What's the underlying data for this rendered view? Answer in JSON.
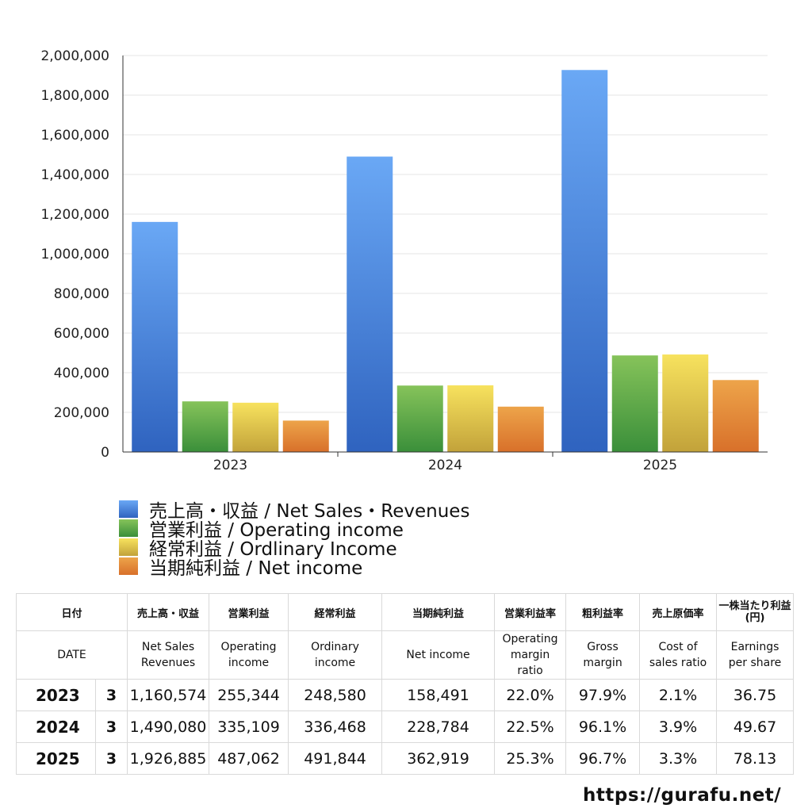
{
  "chart_data": {
    "type": "bar",
    "categories": [
      "2023",
      "2024",
      "2025"
    ],
    "ylim": [
      0,
      2000000
    ],
    "yticks": [
      "0",
      "200,000",
      "400,000",
      "600,000",
      "800,000",
      "1,000,000",
      "1,200,000",
      "1,400,000",
      "1,600,000",
      "1,800,000",
      "2,000,000"
    ],
    "grid": true,
    "legend_position": "bottom-left",
    "series": [
      {
        "name": "売上高・収益 / Net Sales・Revenues",
        "values": [
          1160574,
          1490080,
          1926885
        ],
        "color_top": "#6aa8f5",
        "color_bottom": "#2f63bf"
      },
      {
        "name": "営業利益 / Operating income",
        "values": [
          255344,
          335109,
          487062
        ],
        "color_top": "#86c35a",
        "color_bottom": "#3a8f3a"
      },
      {
        "name": "経常利益 / Ordlinary Income",
        "values": [
          248580,
          336468,
          491844
        ],
        "color_top": "#f7e25e",
        "color_bottom": "#c2a23a"
      },
      {
        "name": "当期純利益 / Net income",
        "values": [
          158491,
          228784,
          362919
        ],
        "color_top": "#eda44a",
        "color_bottom": "#d8702a"
      }
    ]
  },
  "table": {
    "header_jp": {
      "date": "日付",
      "sales": "売上高・収益",
      "operating": "営業利益",
      "ordinary": "経常利益",
      "net": "当期純利益",
      "op_margin": "営業利益率",
      "gross_margin": "粗利益率",
      "cost_ratio": "売上原価率",
      "eps_line1": "一株当たり利益",
      "eps_line2": "(円)"
    },
    "header_en": {
      "date": "DATE",
      "sales_1": "Net Sales",
      "sales_2": "Revenues",
      "operating_1": "Operating",
      "operating_2": "income",
      "ordinary_1": "Ordinary",
      "ordinary_2": "income",
      "net": "Net income",
      "op_margin_1": "Operating",
      "op_margin_2": "margin",
      "op_margin_3": "ratio",
      "gross_1": "Gross",
      "gross_2": "margin",
      "cost_1": "Cost of",
      "cost_2": "sales ratio",
      "eps_1": "Earnings",
      "eps_2": "per share"
    },
    "rows": [
      {
        "year": "2023",
        "month": "3",
        "sales": "1,160,574",
        "operating": "255,344",
        "ordinary": "248,580",
        "net": "158,491",
        "op_margin": "22.0%",
        "gross": "97.9%",
        "cost": "2.1%",
        "eps": "36.75"
      },
      {
        "year": "2024",
        "month": "3",
        "sales": "1,490,080",
        "operating": "335,109",
        "ordinary": "336,468",
        "net": "228,784",
        "op_margin": "22.5%",
        "gross": "96.1%",
        "cost": "3.9%",
        "eps": "49.67"
      },
      {
        "year": "2025",
        "month": "3",
        "sales": "1,926,885",
        "operating": "487,062",
        "ordinary": "491,844",
        "net": "362,919",
        "op_margin": "25.3%",
        "gross": "96.7%",
        "cost": "3.3%",
        "eps": "78.13"
      }
    ]
  },
  "site_url": "https://gurafu.net/"
}
